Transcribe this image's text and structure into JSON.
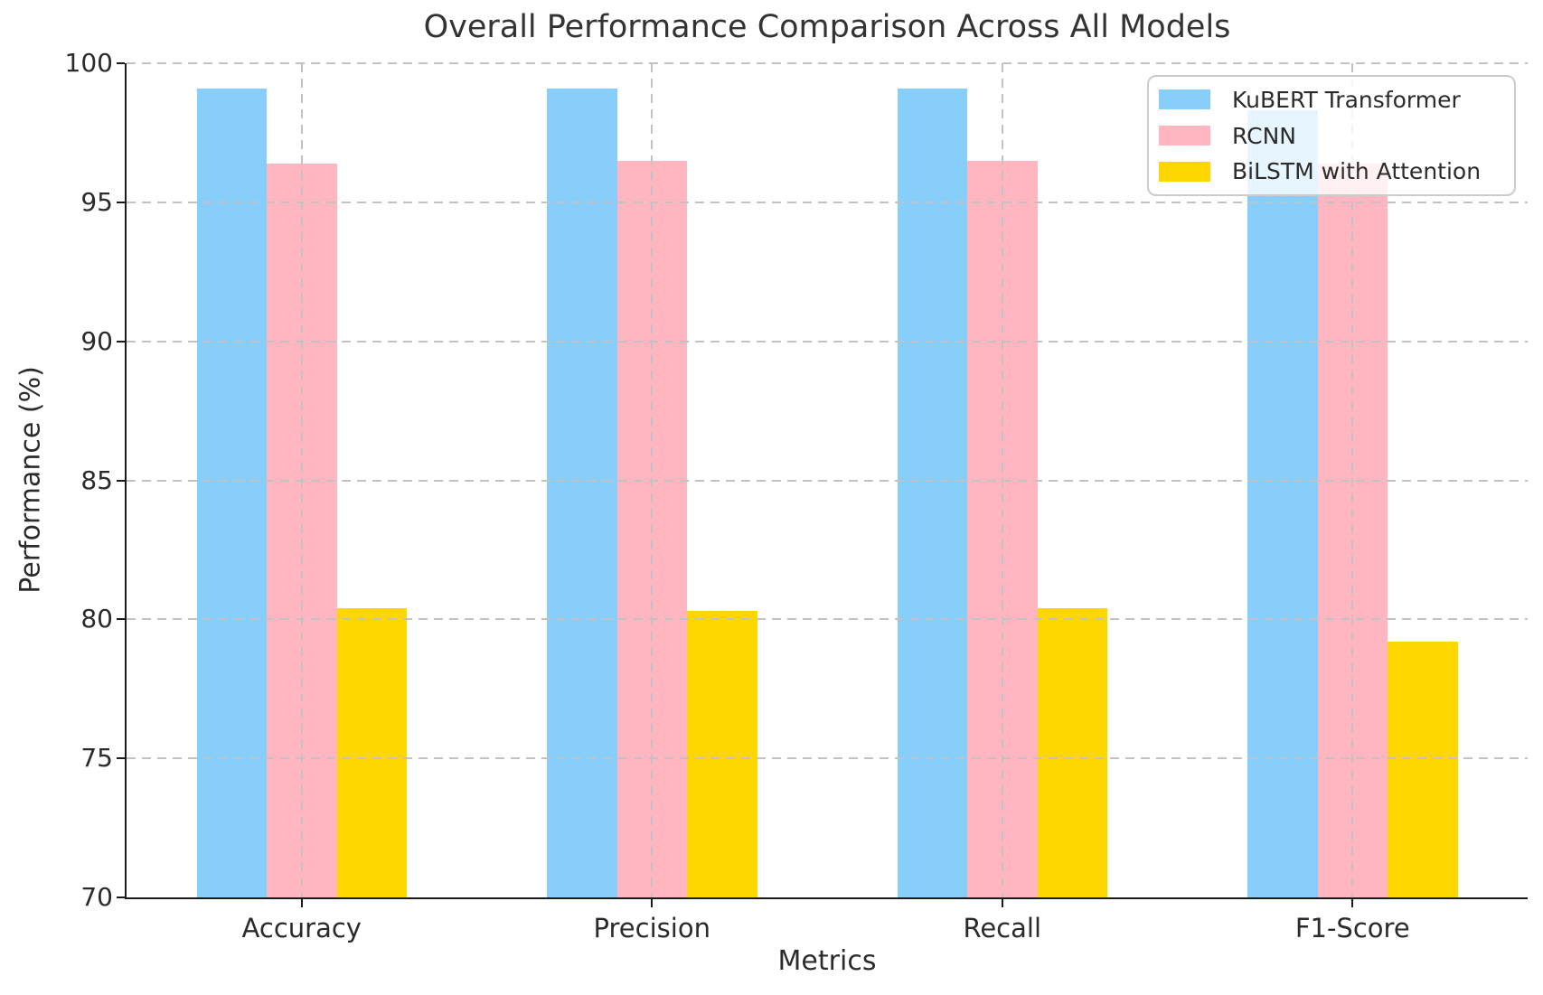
{
  "figure": {
    "title": "Overall Performance Comparison Across All Models",
    "xlabel": "Metrics",
    "ylabel": "Performance (%)"
  },
  "chart_data": {
    "type": "bar",
    "title": "Overall Performance Comparison Across All Models",
    "xlabel": "Metrics",
    "ylabel": "Performance (%)",
    "categories": [
      "Accuracy",
      "Precision",
      "Recall",
      "F1-Score"
    ],
    "series": [
      {
        "name": "KuBERT Transformer",
        "color": "#87CEFA",
        "values": [
          99.1,
          99.1,
          99.1,
          98.3
        ]
      },
      {
        "name": "RCNN",
        "color": "#FFB6C1",
        "values": [
          96.4,
          96.5,
          96.5,
          96.4
        ]
      },
      {
        "name": "BiLSTM with Attention",
        "color": "#FFD700",
        "values": [
          80.4,
          80.3,
          80.4,
          79.2
        ]
      }
    ],
    "ylim": [
      70,
      100
    ],
    "yticks": [
      70,
      75,
      80,
      85,
      90,
      95,
      100
    ],
    "bar_width": 0.2,
    "grid": true,
    "grid_style": "dashed",
    "grid_above_bars": true,
    "legend_position": "upper right",
    "style": {
      "grid_color": "#c2c2c2",
      "spine_color": "#1a1a1a",
      "text_color": "#2b2b2b",
      "legend_background": "rgba(255,255,255,0.8)",
      "legend_border": "#cccccc",
      "background": "#ffffff"
    }
  }
}
